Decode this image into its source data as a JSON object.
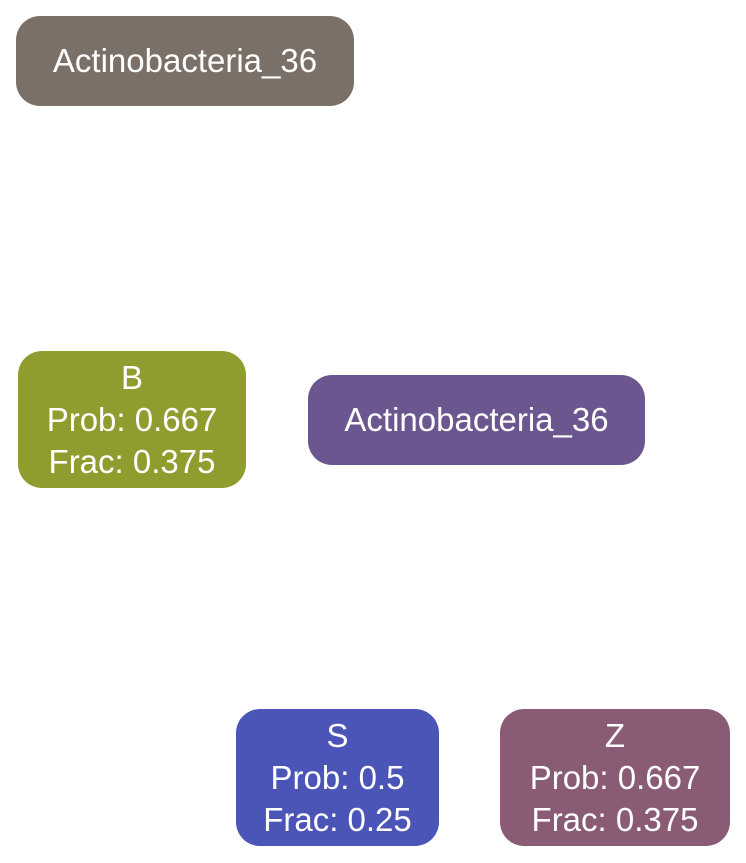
{
  "nodes": {
    "root": {
      "label": "Actinobacteria_36",
      "color": "#7b7067"
    },
    "b": {
      "name": "B",
      "prob": "Prob: 0.667",
      "frac": "Frac: 0.375",
      "color": "#919c2e"
    },
    "inner": {
      "label": "Actinobacteria_36",
      "color": "#6c568f"
    },
    "s": {
      "name": "S",
      "prob": "Prob: 0.5",
      "frac": "Frac: 0.25",
      "color": "#4b55b7"
    },
    "z": {
      "name": "Z",
      "prob": "Prob: 0.667",
      "frac": "Frac: 0.375",
      "color": "#8a5b74"
    }
  }
}
